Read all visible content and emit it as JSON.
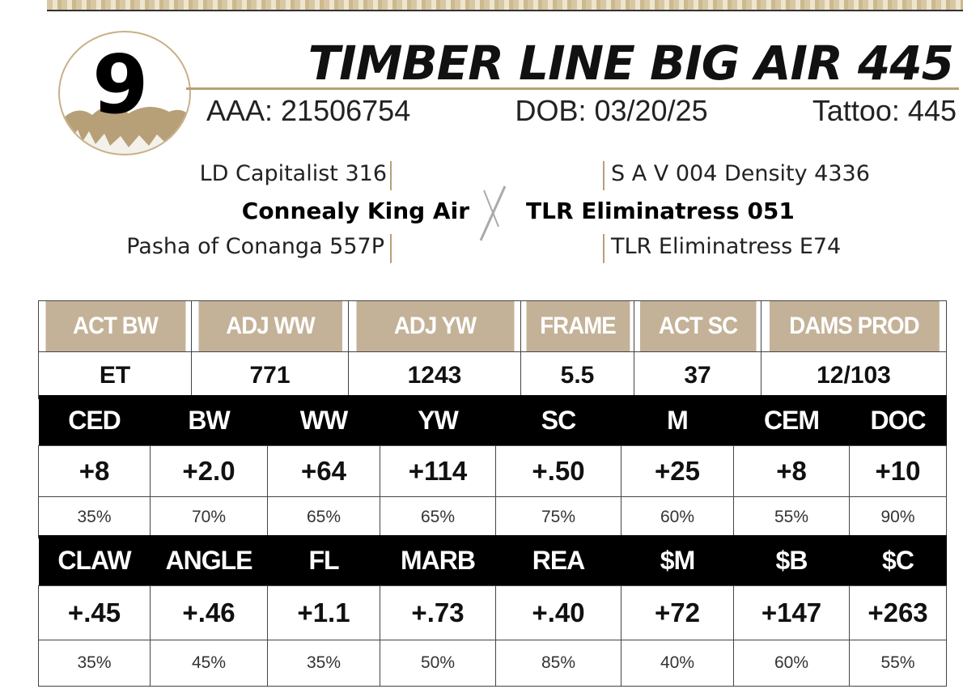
{
  "lot_number": "9",
  "title": "TIMBER LINE BIG AIR 445",
  "registration": {
    "aaa": "AAA: 21506754",
    "dob": "DOB: 03/20/25",
    "tattoo": "Tattoo: 445"
  },
  "pedigree": {
    "sire_sire": "LD Capitalist 316",
    "sire": "Connealy King Air",
    "sire_dam": "Pasha of Conanga 557P",
    "dam_sire": "S A V 004 Density 4336",
    "dam": "TLR Eliminatress 051",
    "dam_dam": "TLR Eliminatress E74"
  },
  "actuals": {
    "headers": [
      "ACT BW",
      "ADJ WW",
      "ADJ YW",
      "FRAME",
      "ACT SC",
      "DAMS PROD"
    ],
    "values": [
      "ET",
      "771",
      "1243",
      "5.5",
      "37",
      "12/103"
    ]
  },
  "epd_row1": {
    "headers": [
      "CED",
      "BW",
      "WW",
      "YW",
      "SC",
      "M",
      "CEM",
      "DOC"
    ],
    "values": [
      "+8",
      "+2.0",
      "+64",
      "+114",
      "+.50",
      "+25",
      "+8",
      "+10"
    ],
    "accuracy": [
      "35%",
      "70%",
      "65%",
      "65%",
      "75%",
      "60%",
      "55%",
      "90%"
    ]
  },
  "epd_row2": {
    "headers": [
      "CLAW",
      "ANGLE",
      "FL",
      "MARB",
      "REA",
      "$M",
      "$B",
      "$C"
    ],
    "values": [
      "+.45",
      "+.46",
      "+1.1",
      "+.73",
      "+.40",
      "+72",
      "+147",
      "+263"
    ],
    "accuracy": [
      "35%",
      "45%",
      "35%",
      "50%",
      "85%",
      "40%",
      "60%",
      "55%"
    ]
  },
  "colors": {
    "tan": "#c4b298",
    "black": "#000000"
  },
  "icons": [
    "mountain-logo-icon",
    "cross-mark-icon"
  ]
}
